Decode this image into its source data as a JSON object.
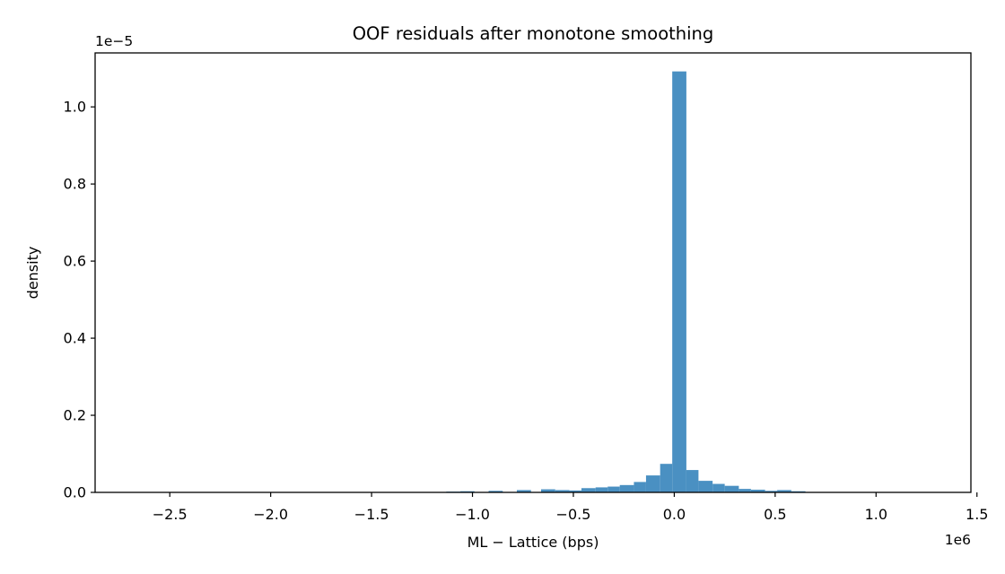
{
  "chart_data": {
    "type": "bar",
    "title": "OOF residuals after monotone smoothing",
    "xlabel": "ML − Lattice (bps)",
    "ylabel": "density",
    "x_offset_label": "1e6",
    "y_offset_label": "1e−5",
    "xlim": [
      -2.87,
      1.47
    ],
    "ylim": [
      0,
      1.14
    ],
    "x_ticks": [
      -2.5,
      -2.0,
      -1.5,
      -1.0,
      -0.5,
      0.0,
      0.5,
      1.0,
      1.5
    ],
    "x_tick_labels": [
      "−2.5",
      "−2.0",
      "−1.5",
      "−1.0",
      "−0.5",
      "0.0",
      "0.5",
      "1.0",
      "1.5"
    ],
    "y_ticks": [
      0.0,
      0.2,
      0.4,
      0.6,
      0.8,
      1.0
    ],
    "y_tick_labels": [
      "0.0",
      "0.2",
      "0.4",
      "0.6",
      "0.8",
      "1.0"
    ],
    "bar_color": "#4a90c2",
    "bins": [
      {
        "x0": -1.13,
        "x1": -1.06,
        "value": 0.002
      },
      {
        "x0": -1.06,
        "x1": -0.99,
        "value": 0.003
      },
      {
        "x0": -0.92,
        "x1": -0.85,
        "value": 0.004
      },
      {
        "x0": -0.78,
        "x1": -0.71,
        "value": 0.006
      },
      {
        "x0": -0.66,
        "x1": -0.59,
        "value": 0.008
      },
      {
        "x0": -0.59,
        "x1": -0.52,
        "value": 0.006
      },
      {
        "x0": -0.52,
        "x1": -0.46,
        "value": 0.005
      },
      {
        "x0": -0.46,
        "x1": -0.39,
        "value": 0.011
      },
      {
        "x0": -0.39,
        "x1": -0.33,
        "value": 0.013
      },
      {
        "x0": -0.33,
        "x1": -0.27,
        "value": 0.015
      },
      {
        "x0": -0.27,
        "x1": -0.2,
        "value": 0.019
      },
      {
        "x0": -0.2,
        "x1": -0.14,
        "value": 0.027
      },
      {
        "x0": -0.14,
        "x1": -0.07,
        "value": 0.044
      },
      {
        "x0": -0.07,
        "x1": -0.01,
        "value": 0.074
      },
      {
        "x0": -0.01,
        "x1": 0.06,
        "value": 1.092
      },
      {
        "x0": 0.06,
        "x1": 0.12,
        "value": 0.058
      },
      {
        "x0": 0.12,
        "x1": 0.19,
        "value": 0.03
      },
      {
        "x0": 0.19,
        "x1": 0.25,
        "value": 0.022
      },
      {
        "x0": 0.25,
        "x1": 0.32,
        "value": 0.017
      },
      {
        "x0": 0.32,
        "x1": 0.38,
        "value": 0.009
      },
      {
        "x0": 0.38,
        "x1": 0.45,
        "value": 0.007
      },
      {
        "x0": 0.45,
        "x1": 0.51,
        "value": 0.004
      },
      {
        "x0": 0.51,
        "x1": 0.58,
        "value": 0.006
      },
      {
        "x0": 0.58,
        "x1": 0.65,
        "value": 0.003
      }
    ]
  }
}
